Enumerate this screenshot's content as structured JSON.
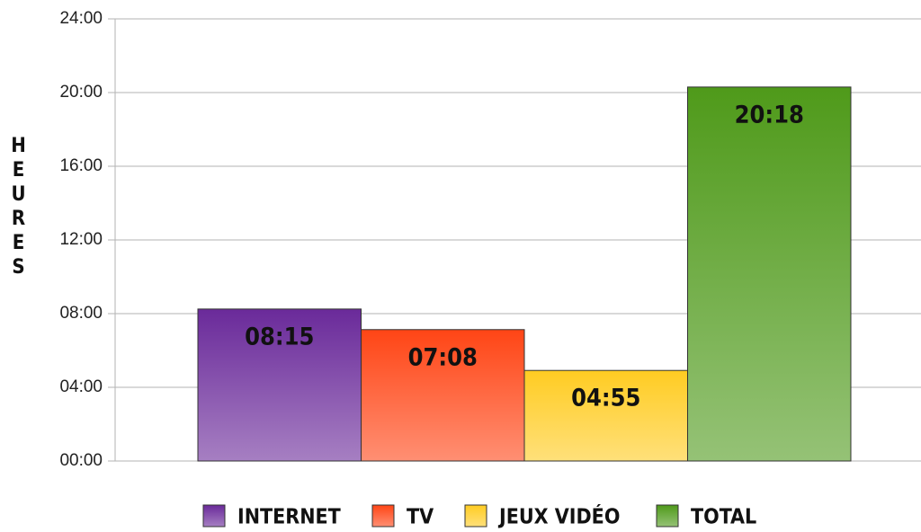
{
  "chart_data": {
    "type": "bar",
    "y_label": "HEURES",
    "series": [
      {
        "name": "INTERNET",
        "color": "#6a2a9a",
        "values": [
          8.25
        ],
        "value_labels": [
          "08:15"
        ]
      },
      {
        "name": "TV",
        "color": "#ff4515",
        "values": [
          7.1333
        ],
        "value_labels": [
          "07:08"
        ]
      },
      {
        "name": "JEUX VIDÉO",
        "color": "#ffcc22",
        "values": [
          4.9167
        ],
        "value_labels": [
          "04:55"
        ]
      },
      {
        "name": "TOTAL",
        "color": "#4f9a1a",
        "values": [
          20.3
        ],
        "value_labels": [
          "20:18"
        ]
      }
    ],
    "ylim": [
      0,
      24
    ],
    "yticks": [
      {
        "value": 0,
        "label": "00:00"
      },
      {
        "value": 4,
        "label": "04:00"
      },
      {
        "value": 8,
        "label": "08:00"
      },
      {
        "value": 12,
        "label": "12:00"
      },
      {
        "value": 16,
        "label": "16:00"
      },
      {
        "value": 20,
        "label": "20:00"
      },
      {
        "value": 24,
        "label": "24:00"
      }
    ],
    "grid": true,
    "legend": "bottom"
  }
}
